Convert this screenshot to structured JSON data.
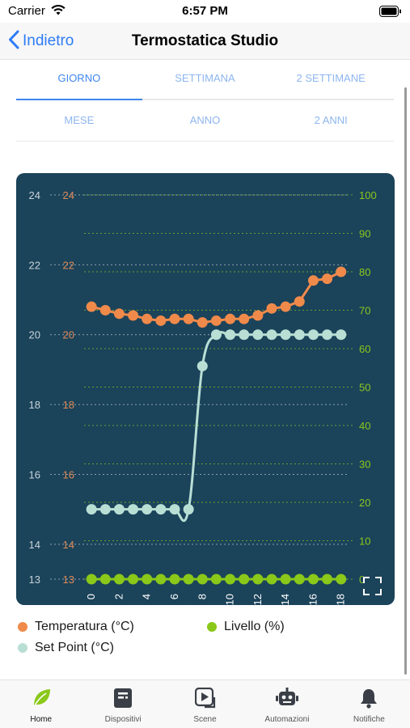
{
  "status_bar": {
    "carrier": "Carrier",
    "time": "6:57 PM"
  },
  "nav": {
    "back_label": "Indietro",
    "title": "Termostatica Studio"
  },
  "range_tabs": {
    "row1": [
      {
        "label": "GIORNO",
        "active": true
      },
      {
        "label": "SETTIMANA",
        "active": false
      },
      {
        "label": "2 SETTIMANE",
        "active": false
      }
    ],
    "row2": [
      {
        "label": "MESE",
        "active": false
      },
      {
        "label": "ANNO",
        "active": false
      },
      {
        "label": "2 ANNI",
        "active": false
      }
    ]
  },
  "chart_data": {
    "type": "line",
    "x": [
      0,
      1,
      2,
      3,
      4,
      5,
      6,
      7,
      8,
      9,
      10,
      11,
      12,
      13,
      14,
      15,
      16,
      17,
      18
    ],
    "x_ticks": [
      "0",
      "2",
      "4",
      "6",
      "8",
      "10",
      "12",
      "14",
      "16",
      "18"
    ],
    "xlim": [
      -0.3,
      18.6
    ],
    "y_left": {
      "ticks": [
        "24",
        "22",
        "20",
        "18",
        "16",
        "14",
        "13"
      ],
      "range": [
        13,
        24
      ]
    },
    "y_temp_labels": [
      "24",
      "22",
      "20",
      "18",
      "16",
      "14",
      "13"
    ],
    "y_right": {
      "ticks": [
        "100",
        "90",
        "80",
        "70",
        "60",
        "50",
        "40",
        "30",
        "20",
        "10",
        "0"
      ],
      "range": [
        0,
        100
      ]
    },
    "series": [
      {
        "name": "Temperatura (°C)",
        "axis": "left",
        "color": "#f08a4b",
        "values": [
          20.8,
          20.7,
          20.6,
          20.55,
          20.45,
          20.4,
          20.45,
          20.45,
          20.35,
          20.4,
          20.45,
          20.45,
          20.55,
          20.75,
          20.8,
          20.95,
          21.55,
          21.6,
          21.8
        ],
        "smooth": false
      },
      {
        "name": "Set Point (°C)",
        "axis": "left",
        "color": "#b9dfd5",
        "values": [
          15,
          15,
          15,
          15,
          15,
          15,
          15,
          15,
          19.1,
          20,
          20,
          20,
          20,
          20,
          20,
          20,
          20,
          20,
          20
        ],
        "smooth": true
      },
      {
        "name": "Livello (%)",
        "axis": "right",
        "color": "#8ac81a",
        "values": [
          0,
          0,
          0,
          0,
          0,
          0,
          0,
          0,
          0,
          0,
          0,
          0,
          0,
          0,
          0,
          0,
          0,
          0,
          0
        ],
        "smooth": false
      }
    ]
  },
  "legend": {
    "temperatura": "Temperatura (°C)",
    "livello": "Livello (%)",
    "setpoint": "Set Point (°C)"
  },
  "tab_bar": [
    {
      "label": "Home",
      "icon": "leaf-icon",
      "active": true
    },
    {
      "label": "Dispositivi",
      "icon": "device-icon",
      "active": false
    },
    {
      "label": "Scene",
      "icon": "play-icon",
      "active": false
    },
    {
      "label": "Automazioni",
      "icon": "robot-icon",
      "active": false
    },
    {
      "label": "Notifiche",
      "icon": "bell-icon",
      "active": false
    }
  ],
  "colors": {
    "accent": "#3e86ee",
    "chart_bg": "#1b435a",
    "temperatura": "#f08a4b",
    "setpoint": "#b9dfd5",
    "livello": "#8ac81a",
    "leaf_green": "#8ac81a",
    "icon_dark": "#3a3f47"
  }
}
